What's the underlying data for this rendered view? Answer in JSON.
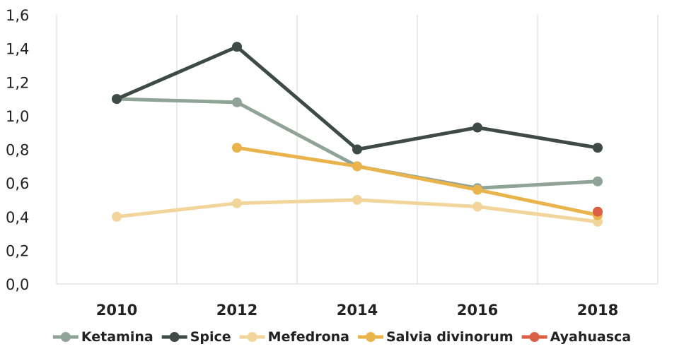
{
  "chart_data": {
    "type": "line",
    "title": "",
    "xlabel": "",
    "ylabel": "",
    "categories": [
      "2010",
      "2012",
      "2014",
      "2016",
      "2018"
    ],
    "ylim": [
      0,
      1.6
    ],
    "yticks": [
      "0,0",
      "0,2",
      "0,4",
      "0,6",
      "0,8",
      "1,0",
      "1,2",
      "1,4",
      "1,6"
    ],
    "grid": "vertical",
    "legend_position": "bottom",
    "series": [
      {
        "name": "Ketamina",
        "color": "#8fa397",
        "values": [
          1.1,
          1.08,
          0.7,
          0.57,
          0.61
        ]
      },
      {
        "name": "Spice",
        "color": "#3e4a45",
        "values": [
          1.1,
          1.41,
          0.8,
          0.93,
          0.81
        ]
      },
      {
        "name": "Mefedrona",
        "color": "#f2d59b",
        "values": [
          0.4,
          0.48,
          0.5,
          0.46,
          0.37
        ]
      },
      {
        "name": "Salvia divinorum",
        "color": "#e9b44c",
        "values": [
          null,
          0.81,
          0.7,
          0.56,
          0.41
        ]
      },
      {
        "name": "Ayahuasca",
        "color": "#d95f45",
        "values": [
          null,
          null,
          null,
          null,
          0.43
        ]
      }
    ]
  }
}
